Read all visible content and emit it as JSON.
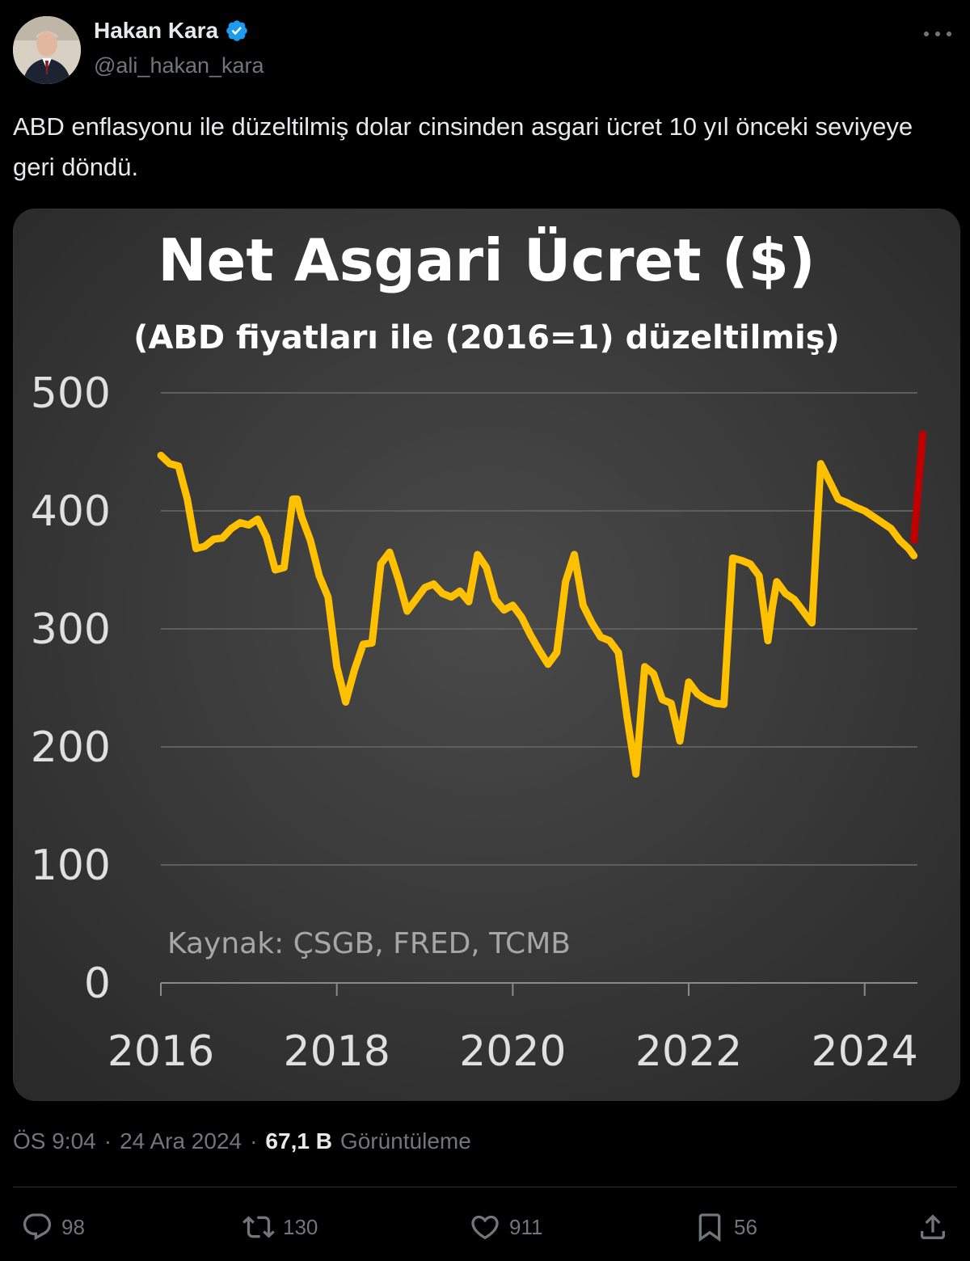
{
  "author": {
    "name": "Hakan Kara",
    "handle": "@ali_hakan_kara"
  },
  "tweet": {
    "text": "ABD enflasyonu ile düzeltilmiş dolar cinsinden asgari ücret 10 yıl önceki seviyeye geri döndü."
  },
  "meta": {
    "time": "ÖS 9:04",
    "date": "24 Ara 2024",
    "separator": "·",
    "views_count": "67,1 B",
    "views_label": "Görüntüleme"
  },
  "actions": {
    "replies": "98",
    "reposts": "130",
    "likes": "911",
    "bookmarks": "56"
  },
  "colors": {
    "accent_verified": "#1d9bf0",
    "series_main": "#ffc000",
    "series_latest": "#c00000",
    "chart_bg": "#3c3c3c"
  },
  "chart_data": {
    "type": "line",
    "title": "Net Asgari Ücret ($)",
    "subtitle": "(ABD fiyatları ile (2016=1) düzeltilmiş)",
    "source": "Kaynak: ÇSGB, FRED, TCMB",
    "xlabel": "",
    "ylabel": "",
    "xlim": [
      2016,
      2024.6
    ],
    "ylim": [
      0,
      500
    ],
    "yticks": [
      0,
      100,
      200,
      300,
      400,
      500
    ],
    "xticks": [
      2016,
      2018,
      2020,
      2022,
      2024
    ],
    "grid": true,
    "series": [
      {
        "x": [
          2016.0,
          2016.1,
          2016.2,
          2016.3,
          2016.4,
          2016.5,
          2016.6,
          2016.7,
          2016.8,
          2016.9,
          2017.0,
          2017.1,
          2017.2,
          2017.3,
          2017.4,
          2017.5,
          2017.55,
          2017.6,
          2017.7,
          2017.8,
          2017.9,
          2018.0,
          2018.1,
          2018.2,
          2018.3,
          2018.4,
          2018.5,
          2018.6,
          2018.7,
          2018.8,
          2018.9,
          2019.0,
          2019.1,
          2019.2,
          2019.3,
          2019.4,
          2019.5,
          2019.6,
          2019.7,
          2019.8,
          2019.9,
          2020.0,
          2020.1,
          2020.2,
          2020.3,
          2020.4,
          2020.5,
          2020.6,
          2020.7,
          2020.8,
          2020.9,
          2021.0,
          2021.1,
          2021.2,
          2021.3,
          2021.4,
          2021.5,
          2021.6,
          2021.7,
          2021.8,
          2021.9,
          2022.0,
          2022.1,
          2022.2,
          2022.3,
          2022.4,
          2022.5,
          2022.6,
          2022.7,
          2022.8,
          2022.9,
          2022.95,
          2023.0,
          2023.1,
          2023.2,
          2023.3,
          2023.4,
          2023.5,
          2023.6,
          2023.7,
          2023.8,
          2023.9,
          2024.0,
          2024.1,
          2024.2,
          2024.3,
          2024.4,
          2024.5,
          2024.56
        ],
        "values": [
          447,
          440,
          438,
          410,
          368,
          370,
          376,
          377,
          385,
          390,
          388,
          393,
          378,
          350,
          352,
          410,
          410,
          395,
          375,
          345,
          327,
          268,
          238,
          265,
          287,
          288,
          355,
          365,
          342,
          315,
          325,
          335,
          338,
          330,
          327,
          332,
          323,
          363,
          352,
          325,
          316,
          320,
          310,
          295,
          282,
          270,
          280,
          340,
          363,
          320,
          305,
          293,
          290,
          280,
          225,
          177,
          268,
          262,
          240,
          237,
          205,
          255,
          245,
          240,
          237,
          236,
          360,
          358,
          355,
          345,
          290,
          318,
          340,
          330,
          325,
          315,
          305,
          440,
          425,
          410,
          407,
          403,
          400,
          395,
          390,
          385,
          375,
          368,
          362
        ]
      },
      {
        "x": [
          2024.56,
          2024.66
        ],
        "values": [
          375,
          465
        ]
      }
    ]
  }
}
